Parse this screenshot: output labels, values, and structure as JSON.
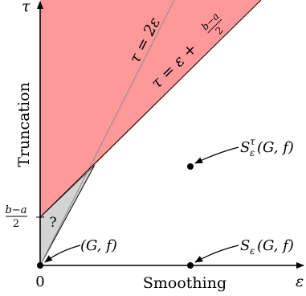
{
  "axes": {
    "x_label": "Smoothing",
    "y_label": "Truncation",
    "x_symbol": "ε",
    "y_symbol": "τ",
    "origin_label": "0"
  },
  "y_tick": {
    "numerator": "b−a",
    "denominator": "2"
  },
  "regions": {
    "feasible_color": "#ff9999",
    "unknown_color": "#d3d3d3",
    "unknown_label": "?"
  },
  "lines": {
    "diagonal_label": "τ = 2ε",
    "offset_label_prefix": "τ = ε + ",
    "offset_label_numerator": "b−a",
    "offset_label_denominator": "2"
  },
  "points": {
    "origin": {
      "label": "(G, f)"
    },
    "smoothed": {
      "label": "S",
      "sub": "ε",
      "args": "(G, f)"
    },
    "truncated": {
      "label": "S",
      "sup": "τ",
      "sub": "ε",
      "args": "(G, f)"
    }
  }
}
